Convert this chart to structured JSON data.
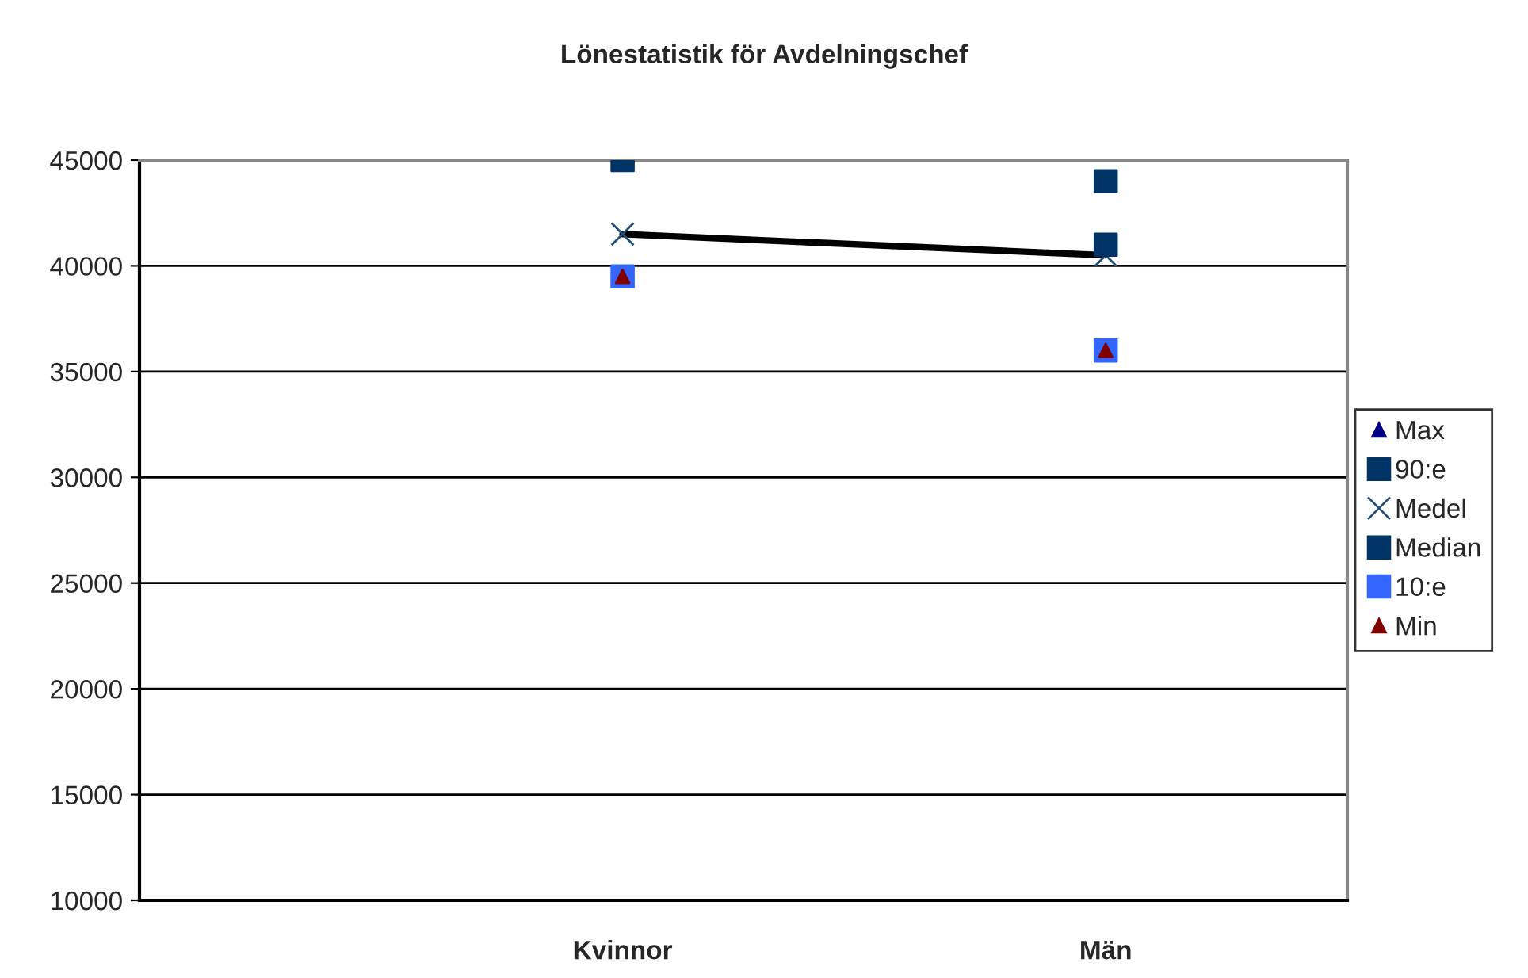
{
  "chart_data": {
    "type": "scatter",
    "title": "Lönestatistik för Avdelningschef",
    "categories": [
      "Kvinnor",
      "Män"
    ],
    "ylim": [
      10000,
      45000
    ],
    "yticks": [
      10000,
      15000,
      20000,
      25000,
      30000,
      35000,
      40000,
      45000
    ],
    "grid": "y",
    "legend": "right",
    "series": [
      {
        "name": "Max",
        "marker": "triangle",
        "color": "#000080",
        "values": [
          null,
          null
        ]
      },
      {
        "name": "90:e",
        "marker": "square",
        "color": "#003366",
        "values": [
          45000,
          44000
        ]
      },
      {
        "name": "Medel",
        "type": "line",
        "marker": "cross",
        "color": "#1f4e79",
        "values": [
          41500,
          40500
        ]
      },
      {
        "name": "Median",
        "marker": "square",
        "color": "#003366",
        "values": [
          null,
          41000
        ]
      },
      {
        "name": "10:e",
        "marker": "square",
        "color": "#3366ff",
        "values": [
          39500,
          36000
        ]
      },
      {
        "name": "Min",
        "marker": "triangle",
        "color": "#800000",
        "values": [
          39500,
          36000
        ]
      }
    ]
  }
}
